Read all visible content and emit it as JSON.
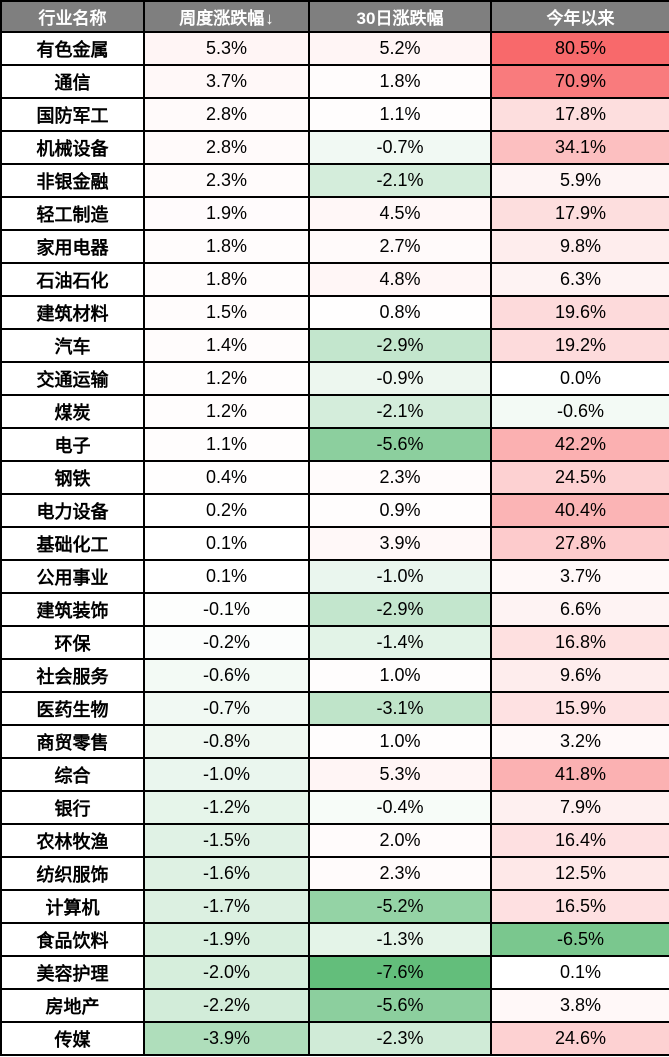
{
  "chart_data": {
    "type": "table",
    "columns": [
      {
        "key": "industry",
        "label": "行业名称"
      },
      {
        "key": "weekly",
        "label": "周度涨跌幅",
        "sort_indicator": "↓",
        "sorted": "desc"
      },
      {
        "key": "monthly",
        "label": "30日涨跌幅"
      },
      {
        "key": "ytd",
        "label": "今年以来"
      }
    ],
    "value_format": "percent_one_decimal",
    "rows": [
      [
        "有色金属",
        5.3,
        5.2,
        80.5
      ],
      [
        "通信",
        3.7,
        1.8,
        70.9
      ],
      [
        "国防军工",
        2.8,
        1.1,
        17.8
      ],
      [
        "机械设备",
        2.8,
        -0.7,
        34.1
      ],
      [
        "非银金融",
        2.3,
        -2.1,
        5.9
      ],
      [
        "轻工制造",
        1.9,
        4.5,
        17.9
      ],
      [
        "家用电器",
        1.8,
        2.7,
        9.8
      ],
      [
        "石油石化",
        1.8,
        4.8,
        6.3
      ],
      [
        "建筑材料",
        1.5,
        0.8,
        19.6
      ],
      [
        "汽车",
        1.4,
        -2.9,
        19.2
      ],
      [
        "交通运输",
        1.2,
        -0.9,
        0.0
      ],
      [
        "煤炭",
        1.2,
        -2.1,
        -0.6
      ],
      [
        "电子",
        1.1,
        -5.6,
        42.2
      ],
      [
        "钢铁",
        0.4,
        2.3,
        24.5
      ],
      [
        "电力设备",
        0.2,
        0.9,
        40.4
      ],
      [
        "基础化工",
        0.1,
        3.9,
        27.8
      ],
      [
        "公用事业",
        0.1,
        -1.0,
        3.7
      ],
      [
        "建筑装饰",
        -0.1,
        -2.9,
        6.6
      ],
      [
        "环保",
        -0.2,
        -1.4,
        16.8
      ],
      [
        "社会服务",
        -0.6,
        1.0,
        9.6
      ],
      [
        "医药生物",
        -0.7,
        -3.1,
        15.9
      ],
      [
        "商贸零售",
        -0.8,
        1.0,
        3.2
      ],
      [
        "综合",
        -1.0,
        5.3,
        41.8
      ],
      [
        "银行",
        -1.2,
        -0.4,
        7.9
      ],
      [
        "农林牧渔",
        -1.5,
        2.0,
        16.4
      ],
      [
        "纺织服饰",
        -1.6,
        2.3,
        12.5
      ],
      [
        "计算机",
        -1.7,
        -5.2,
        16.5
      ],
      [
        "食品饮料",
        -1.9,
        -1.3,
        -6.5
      ],
      [
        "美容护理",
        -2.0,
        -7.6,
        0.1
      ],
      [
        "房地产",
        -2.2,
        -5.6,
        3.8
      ],
      [
        "传媒",
        -3.9,
        -2.3,
        24.6
      ]
    ],
    "heatmap": {
      "positive_color": "#F8696B",
      "neutral_color": "#FFFFFF",
      "negative_color": "#63BE7B",
      "positive_max": 80.5,
      "negative_min": -7.6,
      "scale_scope": "all-value-columns"
    }
  },
  "styles": {
    "header_bg": "#7F7F7F",
    "header_text_color": "#FFFFFF",
    "border_color": "#000000",
    "name_cell_bg": "#FFFFFF"
  }
}
